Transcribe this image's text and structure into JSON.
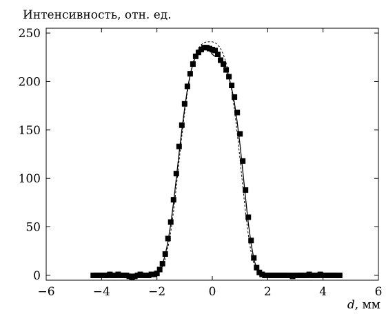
{
  "chart_data": {
    "type": "scatter",
    "ylabel": "Интенсивность, отн. ед.",
    "xlabel_var": "d",
    "xlabel_unit": ", мм",
    "xlim": [
      -6,
      6
    ],
    "ylim": [
      -5,
      255
    ],
    "xticks": [
      -6,
      -4,
      -2,
      0,
      2,
      4,
      6
    ],
    "yticks": [
      0,
      50,
      100,
      150,
      200,
      250
    ],
    "xtick_labels": [
      "−6",
      "−4",
      "−2",
      "0",
      "2",
      "4",
      "6"
    ],
    "ytick_labels": [
      "0",
      "50",
      "100",
      "150",
      "200",
      "250"
    ],
    "grid": false,
    "colors": {
      "axis": "#000000",
      "marker": "#000000",
      "line": "#000000"
    },
    "series": [
      {
        "style": "markers",
        "marker": "square",
        "x": [
          -4.3,
          -4.2,
          -4.1,
          -4.0,
          -3.9,
          -3.8,
          -3.7,
          -3.6,
          -3.5,
          -3.4,
          -3.3,
          -3.2,
          -3.1,
          -3.0,
          -2.9,
          -2.8,
          -2.7,
          -2.6,
          -2.5,
          -2.4,
          -2.3,
          -2.2,
          -2.1,
          -2.0,
          -1.9,
          -1.8,
          -1.7,
          -1.6,
          -1.5,
          -1.4,
          -1.3,
          -1.2,
          -1.1,
          -1.0,
          -0.9,
          -0.8,
          -0.7,
          -0.6,
          -0.5,
          -0.4,
          -0.3,
          -0.2,
          -0.1,
          0.0,
          0.1,
          0.2,
          0.3,
          0.4,
          0.5,
          0.6,
          0.7,
          0.8,
          0.9,
          1.0,
          1.1,
          1.2,
          1.3,
          1.4,
          1.5,
          1.6,
          1.7,
          1.8,
          1.9,
          2.0,
          2.1,
          2.2,
          2.3,
          2.4,
          2.5,
          2.6,
          2.7,
          2.8,
          2.9,
          3.0,
          3.1,
          3.2,
          3.3,
          3.4,
          3.5,
          3.6,
          3.7,
          3.8,
          3.9,
          4.0,
          4.1,
          4.2,
          4.3,
          4.4,
          4.5,
          4.6
        ],
        "y": [
          0,
          0,
          0,
          0,
          0,
          0,
          1,
          0,
          0,
          1,
          0,
          0,
          0,
          -1,
          -2,
          -1,
          0,
          1,
          0,
          0,
          0,
          1,
          1,
          2,
          6,
          12,
          22,
          38,
          55,
          78,
          105,
          133,
          155,
          177,
          195,
          208,
          218,
          226,
          230,
          233,
          235,
          235,
          234,
          233,
          232,
          228,
          222,
          218,
          212,
          205,
          196,
          184,
          168,
          146,
          118,
          88,
          60,
          36,
          18,
          8,
          3,
          1,
          0,
          0,
          0,
          0,
          0,
          0,
          0,
          0,
          0,
          0,
          -1,
          0,
          0,
          0,
          0,
          0,
          1,
          0,
          0,
          0,
          1,
          0,
          0,
          0,
          0,
          0,
          0,
          0
        ]
      },
      {
        "style": "solid",
        "x": [
          -4.3,
          -2.6,
          -2.4,
          -2.2,
          -2.0,
          -1.9,
          -1.8,
          -1.7,
          -1.6,
          -1.5,
          -1.4,
          -1.3,
          -1.2,
          -1.1,
          -1.0,
          -0.9,
          -0.8,
          -0.7,
          -0.6,
          -0.5,
          -0.4,
          -0.3,
          -0.2,
          -0.1,
          0.0,
          0.1,
          0.2,
          0.3,
          0.4,
          0.5,
          0.6,
          0.7,
          0.8,
          0.9,
          1.0,
          1.1,
          1.2,
          1.3,
          1.4,
          1.5,
          1.6,
          1.7,
          1.8,
          1.9,
          2.0,
          2.2,
          2.4,
          4.7
        ],
        "y": [
          0,
          0,
          0,
          1,
          3,
          6,
          12,
          21,
          35,
          53,
          75,
          100,
          126,
          150,
          172,
          192,
          207,
          218,
          226,
          231,
          234,
          235,
          235,
          233,
          228,
          226,
          228,
          224,
          219,
          212,
          204,
          193,
          178,
          158,
          135,
          108,
          80,
          54,
          33,
          17,
          7,
          2,
          0,
          0,
          0,
          0,
          0,
          0
        ]
      },
      {
        "style": "dashed",
        "x": [
          -4.3,
          -2.6,
          -2.4,
          -2.2,
          -2.0,
          -1.9,
          -1.8,
          -1.7,
          -1.6,
          -1.5,
          -1.4,
          -1.3,
          -1.2,
          -1.1,
          -1.0,
          -0.9,
          -0.8,
          -0.7,
          -0.6,
          -0.5,
          -0.4,
          -0.3,
          -0.2,
          -0.1,
          0.0,
          0.1,
          0.2,
          0.3,
          0.4,
          0.5,
          0.6,
          0.7,
          0.8,
          0.9,
          1.0,
          1.1,
          1.2,
          1.3,
          1.4,
          1.5,
          1.6,
          1.7,
          1.8,
          1.9,
          2.0,
          2.2,
          2.4,
          4.7
        ],
        "y": [
          0,
          0,
          0,
          0,
          2,
          4,
          9,
          17,
          29,
          45,
          66,
          91,
          118,
          144,
          168,
          189,
          206,
          219,
          228,
          234,
          238,
          240,
          241,
          241,
          241,
          240,
          238,
          234,
          228,
          219,
          207,
          191,
          171,
          147,
          120,
          92,
          65,
          42,
          24,
          12,
          5,
          2,
          0,
          0,
          0,
          0,
          0,
          0
        ]
      }
    ]
  }
}
